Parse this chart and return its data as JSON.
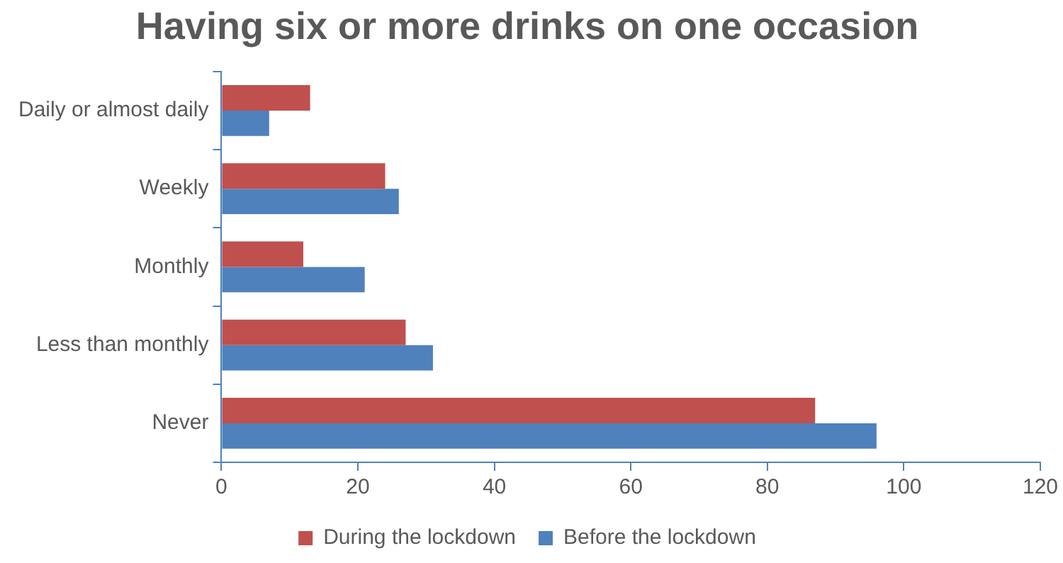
{
  "chart_data": {
    "type": "bar",
    "orientation": "horizontal",
    "title": "Having six or more drinks on one occasion",
    "categories": [
      "Daily or almost daily",
      "Weekly",
      "Monthly",
      "Less than monthly",
      "Never"
    ],
    "series": [
      {
        "name": "During the lockdown",
        "color": "#c0504d",
        "values": [
          13,
          24,
          12,
          27,
          87
        ]
      },
      {
        "name": "Before the lockdown",
        "color": "#4f81bd",
        "values": [
          7,
          26,
          21,
          31,
          96
        ]
      }
    ],
    "xlim": [
      0,
      120
    ],
    "xticks": [
      0,
      20,
      40,
      60,
      80,
      100,
      120
    ],
    "grid": false,
    "legend": "bottom"
  }
}
